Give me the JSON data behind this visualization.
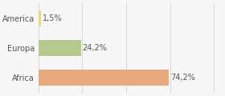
{
  "categories": [
    "America",
    "Europa",
    "Africa"
  ],
  "values": [
    1.5,
    24.2,
    74.2
  ],
  "labels": [
    "1,5%",
    "24,2%",
    "74,2%"
  ],
  "bar_colors": [
    "#e8d87a",
    "#b5c98e",
    "#e8a97e"
  ],
  "background_color": "#f7f7f7",
  "xlim": [
    0,
    105
  ],
  "bar_height": 0.55,
  "label_fontsize": 7.0,
  "tick_fontsize": 7.0
}
